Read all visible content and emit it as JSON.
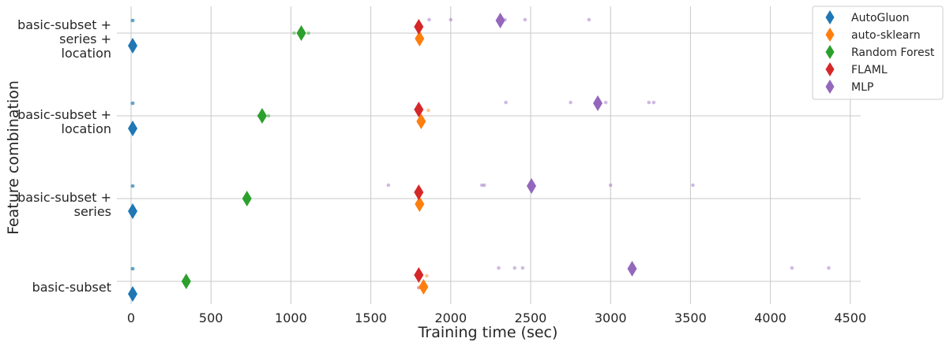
{
  "chart_data": {
    "type": "scatter",
    "xlabel": "Training time (sec)",
    "ylabel": "Feature combination",
    "xlim": [
      -60,
      4570
    ],
    "xticks": [
      0,
      500,
      1000,
      1500,
      2000,
      2500,
      3000,
      3500,
      4000,
      4500
    ],
    "grid": true,
    "legend_position": "top-right",
    "categories": [
      {
        "key": "c1",
        "lines": [
          "basic-subset +",
          "series +",
          "location"
        ]
      },
      {
        "key": "c2",
        "lines": [
          "basic-subset +",
          "location"
        ]
      },
      {
        "key": "c3",
        "lines": [
          "basic-subset +",
          "series"
        ]
      },
      {
        "key": "c4",
        "lines": [
          "basic-subset"
        ]
      }
    ],
    "series": [
      {
        "name": "AutoGluon",
        "color": "#1f77b4",
        "means": [
          {
            "cat": "c1",
            "x": 10
          },
          {
            "cat": "c2",
            "x": 10
          },
          {
            "cat": "c3",
            "x": 10
          },
          {
            "cat": "c4",
            "x": 10
          }
        ],
        "points": [
          {
            "cat": "c1",
            "x": [
              8,
              12
            ]
          },
          {
            "cat": "c2",
            "x": [
              8,
              12
            ]
          },
          {
            "cat": "c3",
            "x": [
              8,
              12
            ]
          },
          {
            "cat": "c4",
            "x": [
              8,
              12
            ]
          }
        ]
      },
      {
        "name": "auto-sklearn",
        "color": "#ff7f0e",
        "means": [
          {
            "cat": "c1",
            "x": 1805
          },
          {
            "cat": "c2",
            "x": 1815
          },
          {
            "cat": "c3",
            "x": 1805
          },
          {
            "cat": "c4",
            "x": 1830
          }
        ],
        "points": [
          {
            "cat": "c1",
            "x": [
              1795,
              1810
            ]
          },
          {
            "cat": "c2",
            "x": [
              1800,
              1860
            ]
          },
          {
            "cat": "c3",
            "x": [
              1795,
              1810
            ]
          },
          {
            "cat": "c4",
            "x": [
              1815,
              1850
            ]
          }
        ]
      },
      {
        "name": "Random Forest",
        "color": "#2ca02c",
        "means": [
          {
            "cat": "c1",
            "x": 1065
          },
          {
            "cat": "c2",
            "x": 820
          },
          {
            "cat": "c3",
            "x": 725
          },
          {
            "cat": "c4",
            "x": 345
          }
        ],
        "points": [
          {
            "cat": "c1",
            "x": [
              1020,
              1060,
              1110
            ]
          },
          {
            "cat": "c2",
            "x": [
              800,
              860
            ]
          },
          {
            "cat": "c3",
            "x": [
              715,
              735
            ]
          },
          {
            "cat": "c4",
            "x": [
              340,
              350
            ]
          }
        ]
      },
      {
        "name": "FLAML",
        "color": "#d62728",
        "means": [
          {
            "cat": "c1",
            "x": 1800
          },
          {
            "cat": "c2",
            "x": 1800
          },
          {
            "cat": "c3",
            "x": 1800
          },
          {
            "cat": "c4",
            "x": 1800
          }
        ],
        "points": [
          {
            "cat": "c1",
            "x": [
              1800
            ]
          },
          {
            "cat": "c2",
            "x": [
              1800
            ]
          },
          {
            "cat": "c3",
            "x": [
              1800
            ]
          },
          {
            "cat": "c4",
            "x": [
              1800
            ]
          }
        ]
      },
      {
        "name": "MLP",
        "color": "#9467bd",
        "means": [
          {
            "cat": "c1",
            "x": 2310
          },
          {
            "cat": "c2",
            "x": 2920
          },
          {
            "cat": "c3",
            "x": 2505
          },
          {
            "cat": "c4",
            "x": 3135
          }
        ],
        "points": [
          {
            "cat": "c1",
            "x": [
              1865,
              2000,
              2340,
              2465,
              2865
            ]
          },
          {
            "cat": "c2",
            "x": [
              2345,
              2750,
              2970,
              3240,
              3270
            ]
          },
          {
            "cat": "c3",
            "x": [
              1610,
              2195,
              2210,
              3000,
              3515
            ]
          },
          {
            "cat": "c4",
            "x": [
              2300,
              2400,
              2450,
              4135,
              4365
            ]
          }
        ]
      }
    ]
  }
}
